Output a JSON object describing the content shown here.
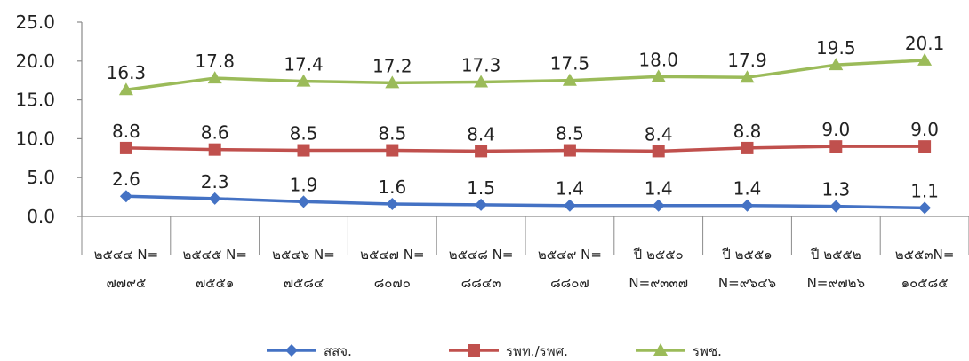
{
  "chart_data": {
    "type": "line",
    "categories": [
      [
        "๒๕๔๔ N=",
        "๗๗๙๕"
      ],
      [
        "๒๕๔๕ N=",
        "๗๕๕๑"
      ],
      [
        "๒๕๔๖ N=",
        "๗๕๘๔"
      ],
      [
        "๒๕๔๗ N=",
        "๘๐๗๐"
      ],
      [
        "๒๕๔๘ N=",
        "๘๘๔๓"
      ],
      [
        "๒๕๔๙ N=",
        "๘๘๐๗"
      ],
      [
        "ปี ๒๕๕๐",
        "N=๙๓๓๗"
      ],
      [
        "ปี ๒๕๕๑",
        "N=๙๖๔๖"
      ],
      [
        "ปี ๒๕๕๒",
        "N=๙๗๒๖"
      ],
      [
        "๒๕๕๓N=",
        "๑๐๕๘๕"
      ]
    ],
    "series": [
      {
        "name": "สสจ.",
        "color": "#4472c4",
        "marker": "diamond",
        "values": [
          2.6,
          2.3,
          1.9,
          1.6,
          1.5,
          1.4,
          1.4,
          1.4,
          1.3,
          1.1
        ]
      },
      {
        "name": "รพท./รพศ.",
        "color": "#c0504d",
        "marker": "square",
        "values": [
          8.8,
          8.6,
          8.5,
          8.5,
          8.4,
          8.5,
          8.4,
          8.8,
          9.0,
          9.0
        ]
      },
      {
        "name": "รพช.",
        "color": "#9bbb59",
        "marker": "triangle",
        "values": [
          16.3,
          17.8,
          17.4,
          17.2,
          17.3,
          17.5,
          18.0,
          17.9,
          19.5,
          20.1
        ]
      }
    ],
    "yticks": [
      "0.0",
      "5.0",
      "10.0",
      "15.0",
      "20.0",
      "25.0"
    ],
    "ylim": [
      0,
      25
    ],
    "grid": false,
    "legend": "bottom",
    "title": "",
    "xlabel": "",
    "ylabel": ""
  }
}
